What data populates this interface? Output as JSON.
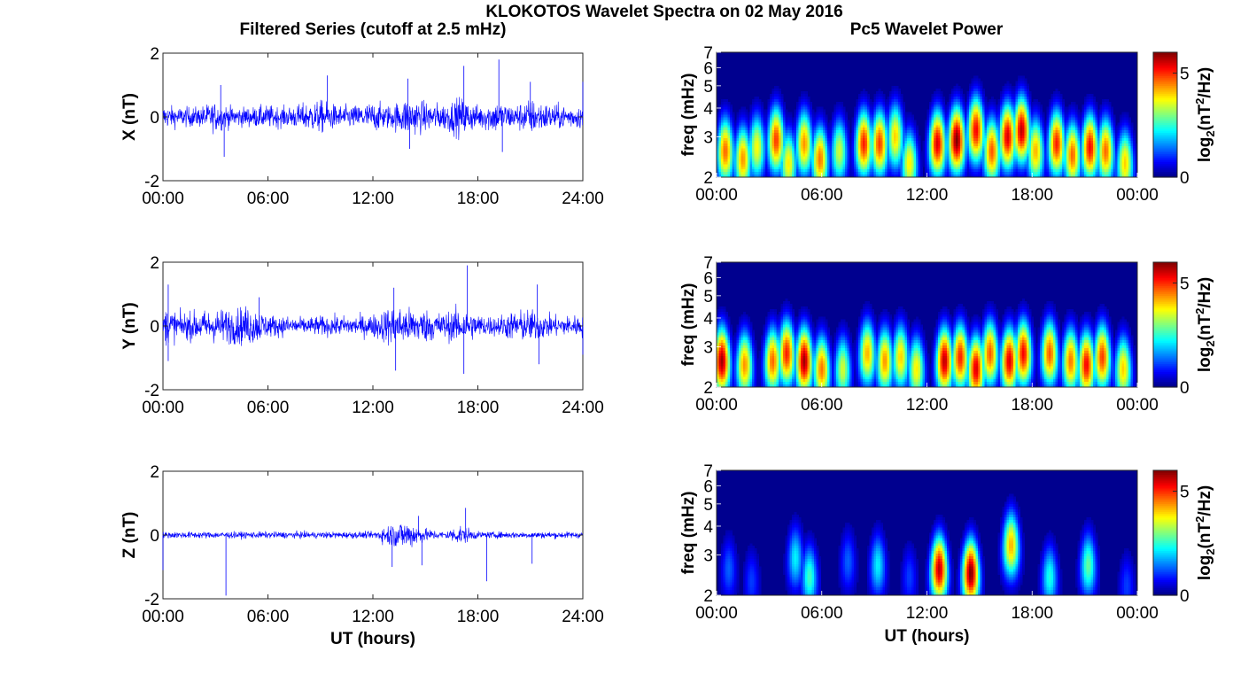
{
  "figure": {
    "title": "KLOKOTOS Wavelet Spectra on 02 May 2016",
    "left_column_title": "Filtered Series (cutoff at 2.5 mHz)",
    "right_column_title": "Pc5 Wavelet Power"
  },
  "colors": {
    "trace": "#0000ff",
    "axis": "#262626",
    "background": "#00008f"
  },
  "chart_data": [
    {
      "type": "line",
      "name": "X",
      "ylabel": "X (nT)",
      "xlabel": "",
      "ylim": [
        -2,
        2
      ],
      "yticks": [
        "-2",
        "0",
        "2"
      ],
      "xticks": [
        "00:00",
        "06:00",
        "12:00",
        "18:00",
        "24:00"
      ],
      "x_range_hours": [
        0,
        24
      ],
      "envelope_hours": [
        0,
        1,
        2,
        3,
        4,
        5,
        6,
        7,
        8,
        9,
        10,
        11,
        12,
        13,
        14,
        15,
        16,
        17,
        18,
        19,
        20,
        21,
        22,
        23,
        24
      ],
      "envelope_amplitude_nT": [
        0.35,
        0.3,
        0.3,
        0.45,
        0.3,
        0.3,
        0.35,
        0.3,
        0.4,
        0.5,
        0.35,
        0.35,
        0.45,
        0.35,
        0.6,
        0.45,
        0.4,
        0.6,
        0.35,
        0.5,
        0.35,
        0.55,
        0.4,
        0.35,
        0.35
      ],
      "spikes": [
        {
          "t": 3.5,
          "v": -1.25
        },
        {
          "t": 3.3,
          "v": 1.0
        },
        {
          "t": 9.4,
          "v": 1.3
        },
        {
          "t": 14.0,
          "v": 1.2
        },
        {
          "t": 17.2,
          "v": 1.6
        },
        {
          "t": 19.2,
          "v": 1.8
        },
        {
          "t": 21.0,
          "v": 1.1
        },
        {
          "t": 24.0,
          "v": 1.1
        },
        {
          "t": 14.1,
          "v": -1.0
        },
        {
          "t": 19.4,
          "v": -1.1
        }
      ]
    },
    {
      "type": "line",
      "name": "Y",
      "ylabel": "Y (nT)",
      "xlabel": "",
      "ylim": [
        -2,
        2
      ],
      "yticks": [
        "-2",
        "0",
        "2"
      ],
      "xticks": [
        "00:00",
        "06:00",
        "12:00",
        "18:00",
        "24:00"
      ],
      "x_range_hours": [
        0,
        24
      ],
      "envelope_hours": [
        0,
        1,
        2,
        3,
        4,
        5,
        6,
        7,
        8,
        9,
        10,
        11,
        12,
        13,
        14,
        15,
        16,
        17,
        18,
        19,
        20,
        21,
        22,
        23,
        24
      ],
      "envelope_amplitude_nT": [
        0.6,
        0.4,
        0.45,
        0.5,
        0.55,
        0.6,
        0.35,
        0.3,
        0.25,
        0.3,
        0.3,
        0.3,
        0.35,
        0.6,
        0.55,
        0.5,
        0.4,
        0.55,
        0.35,
        0.3,
        0.45,
        0.5,
        0.35,
        0.3,
        0.35
      ],
      "spikes": [
        {
          "t": 0.3,
          "v": -1.1
        },
        {
          "t": 0.3,
          "v": 1.3
        },
        {
          "t": 5.5,
          "v": 0.9
        },
        {
          "t": 13.2,
          "v": 1.2
        },
        {
          "t": 13.3,
          "v": -1.4
        },
        {
          "t": 17.4,
          "v": 1.9
        },
        {
          "t": 17.2,
          "v": -1.5
        },
        {
          "t": 21.4,
          "v": 1.3
        },
        {
          "t": 21.5,
          "v": -1.2
        },
        {
          "t": 24.0,
          "v": -0.9
        }
      ]
    },
    {
      "type": "line",
      "name": "Z",
      "ylabel": "Z (nT)",
      "xlabel": "UT (hours)",
      "ylim": [
        -2,
        2
      ],
      "yticks": [
        "-2",
        "0",
        "2"
      ],
      "xticks": [
        "00:00",
        "06:00",
        "12:00",
        "18:00",
        "24:00"
      ],
      "x_range_hours": [
        0,
        24
      ],
      "envelope_hours": [
        0,
        1,
        2,
        3,
        4,
        5,
        6,
        7,
        8,
        9,
        10,
        11,
        12,
        13,
        14,
        15,
        16,
        17,
        18,
        19,
        20,
        21,
        22,
        23,
        24
      ],
      "envelope_amplitude_nT": [
        0.1,
        0.1,
        0.1,
        0.1,
        0.1,
        0.1,
        0.1,
        0.1,
        0.1,
        0.1,
        0.1,
        0.1,
        0.1,
        0.35,
        0.45,
        0.2,
        0.1,
        0.3,
        0.1,
        0.1,
        0.1,
        0.1,
        0.1,
        0.1,
        0.1
      ],
      "spikes": [
        {
          "t": 0.0,
          "v": -1.1
        },
        {
          "t": 3.6,
          "v": -1.9
        },
        {
          "t": 13.1,
          "v": -1.0
        },
        {
          "t": 14.8,
          "v": -0.95
        },
        {
          "t": 14.6,
          "v": 0.6
        },
        {
          "t": 17.3,
          "v": 0.85
        },
        {
          "t": 18.5,
          "v": -1.45
        },
        {
          "t": 21.1,
          "v": -0.9
        }
      ]
    },
    {
      "type": "heatmap",
      "name": "X wavelet power",
      "ylabel": "freq (mHz)",
      "xlabel": "",
      "yscale": "log",
      "ylim": [
        2,
        7
      ],
      "yticks": [
        "2",
        "3",
        "4",
        "5",
        "6",
        "7"
      ],
      "xticks": [
        "00:00",
        "06:00",
        "12:00",
        "18:00",
        "00:00"
      ],
      "colorbar_label_base": "log",
      "colorbar_label_sub": "2",
      "colorbar_label_mid": "(nT",
      "colorbar_label_sup": "2",
      "colorbar_label_end": "/Hz)",
      "colorbar_ticks": [
        "0",
        "5"
      ],
      "clim": [
        0,
        6
      ],
      "bursts": [
        {
          "t": 0.5,
          "f": 2.6,
          "p": 4.5
        },
        {
          "t": 1.5,
          "f": 2.4,
          "p": 4.2
        },
        {
          "t": 2.3,
          "f": 2.7,
          "p": 3.5
        },
        {
          "t": 3.4,
          "f": 2.9,
          "p": 4.8
        },
        {
          "t": 4.1,
          "f": 2.3,
          "p": 3.6
        },
        {
          "t": 5.0,
          "f": 2.8,
          "p": 4.2
        },
        {
          "t": 5.9,
          "f": 2.4,
          "p": 4.4
        },
        {
          "t": 7.0,
          "f": 2.6,
          "p": 3.2
        },
        {
          "t": 8.4,
          "f": 2.8,
          "p": 5.0
        },
        {
          "t": 9.3,
          "f": 2.8,
          "p": 4.8
        },
        {
          "t": 10.2,
          "f": 3.0,
          "p": 3.8
        },
        {
          "t": 11.0,
          "f": 2.3,
          "p": 3.6
        },
        {
          "t": 12.6,
          "f": 2.8,
          "p": 5.4
        },
        {
          "t": 13.7,
          "f": 2.9,
          "p": 6.0
        },
        {
          "t": 14.8,
          "f": 3.2,
          "p": 5.2
        },
        {
          "t": 15.7,
          "f": 2.6,
          "p": 4.6
        },
        {
          "t": 16.6,
          "f": 3.0,
          "p": 5.4
        },
        {
          "t": 17.4,
          "f": 3.2,
          "p": 5.6
        },
        {
          "t": 18.2,
          "f": 2.6,
          "p": 4.0
        },
        {
          "t": 19.4,
          "f": 2.8,
          "p": 5.0
        },
        {
          "t": 20.3,
          "f": 2.5,
          "p": 4.5
        },
        {
          "t": 21.3,
          "f": 2.7,
          "p": 5.2
        },
        {
          "t": 22.2,
          "f": 2.6,
          "p": 4.5
        },
        {
          "t": 23.3,
          "f": 2.3,
          "p": 3.8
        }
      ]
    },
    {
      "type": "heatmap",
      "name": "Y wavelet power",
      "ylabel": "freq (mHz)",
      "xlabel": "",
      "yscale": "log",
      "ylim": [
        2,
        7
      ],
      "yticks": [
        "2",
        "3",
        "4",
        "5",
        "6",
        "7"
      ],
      "xticks": [
        "00:00",
        "06:00",
        "12:00",
        "18:00",
        "00:00"
      ],
      "colorbar_label_base": "log",
      "colorbar_label_sub": "2",
      "colorbar_label_mid": "(nT",
      "colorbar_label_sup": "2",
      "colorbar_label_end": "/Hz)",
      "colorbar_ticks": [
        "0",
        "5"
      ],
      "clim": [
        0,
        6
      ],
      "bursts": [
        {
          "t": 0.3,
          "f": 2.6,
          "p": 5.8
        },
        {
          "t": 1.6,
          "f": 2.5,
          "p": 4.2
        },
        {
          "t": 3.2,
          "f": 2.6,
          "p": 4.5
        },
        {
          "t": 4.0,
          "f": 2.8,
          "p": 5.0
        },
        {
          "t": 5.0,
          "f": 2.6,
          "p": 5.8
        },
        {
          "t": 6.0,
          "f": 2.4,
          "p": 4.4
        },
        {
          "t": 7.2,
          "f": 2.4,
          "p": 3.2
        },
        {
          "t": 8.6,
          "f": 2.8,
          "p": 4.0
        },
        {
          "t": 9.6,
          "f": 2.6,
          "p": 4.2
        },
        {
          "t": 10.5,
          "f": 2.7,
          "p": 3.8
        },
        {
          "t": 11.4,
          "f": 2.4,
          "p": 3.6
        },
        {
          "t": 13.0,
          "f": 2.6,
          "p": 5.6
        },
        {
          "t": 13.9,
          "f": 2.7,
          "p": 5.0
        },
        {
          "t": 14.8,
          "f": 2.4,
          "p": 5.4
        },
        {
          "t": 15.6,
          "f": 2.8,
          "p": 4.6
        },
        {
          "t": 16.7,
          "f": 2.6,
          "p": 5.4
        },
        {
          "t": 17.5,
          "f": 2.8,
          "p": 5.2
        },
        {
          "t": 19.0,
          "f": 2.8,
          "p": 4.6
        },
        {
          "t": 20.2,
          "f": 2.6,
          "p": 4.4
        },
        {
          "t": 21.1,
          "f": 2.5,
          "p": 5.2
        },
        {
          "t": 22.0,
          "f": 2.7,
          "p": 4.8
        },
        {
          "t": 23.2,
          "f": 2.4,
          "p": 3.8
        }
      ]
    },
    {
      "type": "heatmap",
      "name": "Z wavelet power",
      "ylabel": "freq (mHz)",
      "xlabel": "UT (hours)",
      "yscale": "log",
      "ylim": [
        2,
        7
      ],
      "yticks": [
        "2",
        "3",
        "4",
        "5",
        "6",
        "7"
      ],
      "xticks": [
        "00:00",
        "06:00",
        "12:00",
        "18:00",
        "00:00"
      ],
      "colorbar_label_base": "log",
      "colorbar_label_sub": "2",
      "colorbar_label_mid": "(nT",
      "colorbar_label_sup": "2",
      "colorbar_label_end": "/Hz)",
      "colorbar_ticks": [
        "0",
        "5"
      ],
      "clim": [
        0,
        6
      ],
      "bursts": [
        {
          "t": 0.7,
          "f": 2.6,
          "p": 1.2
        },
        {
          "t": 2.0,
          "f": 2.3,
          "p": 1.0
        },
        {
          "t": 4.5,
          "f": 2.9,
          "p": 2.0
        },
        {
          "t": 5.3,
          "f": 2.4,
          "p": 2.4
        },
        {
          "t": 7.5,
          "f": 2.8,
          "p": 1.2
        },
        {
          "t": 9.2,
          "f": 2.7,
          "p": 2.0
        },
        {
          "t": 11.0,
          "f": 2.4,
          "p": 1.0
        },
        {
          "t": 12.7,
          "f": 2.6,
          "p": 5.6
        },
        {
          "t": 14.5,
          "f": 2.5,
          "p": 6.0
        },
        {
          "t": 16.8,
          "f": 3.3,
          "p": 4.0
        },
        {
          "t": 19.0,
          "f": 2.4,
          "p": 2.2
        },
        {
          "t": 21.2,
          "f": 2.7,
          "p": 2.6
        },
        {
          "t": 23.4,
          "f": 2.2,
          "p": 1.0
        }
      ]
    }
  ]
}
